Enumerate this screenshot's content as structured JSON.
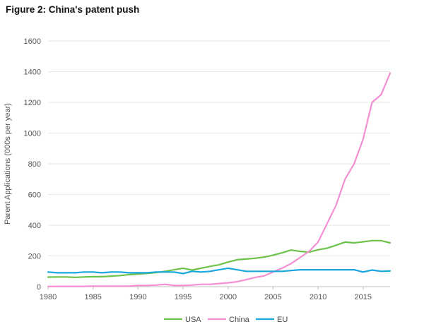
{
  "figure": {
    "title": "Figure 2: China's patent push"
  },
  "chart_data": {
    "type": "line",
    "title": "Figure 2: China's patent push",
    "xlabel": "",
    "ylabel": "Parent Applications (000s per year)",
    "xlim": [
      1980,
      2018
    ],
    "ylim": [
      0,
      1600
    ],
    "xticks": [
      1980,
      1985,
      1990,
      1995,
      2000,
      2005,
      2010,
      2015
    ],
    "yticks": [
      0,
      200,
      400,
      600,
      800,
      1000,
      1200,
      1400,
      1600
    ],
    "grid": "horizontal",
    "legend_position": "bottom",
    "x": [
      1980,
      1981,
      1982,
      1983,
      1984,
      1985,
      1986,
      1987,
      1988,
      1989,
      1990,
      1991,
      1992,
      1993,
      1994,
      1995,
      1996,
      1997,
      1998,
      1999,
      2000,
      2001,
      2002,
      2003,
      2004,
      2005,
      2006,
      2007,
      2008,
      2009,
      2010,
      2011,
      2012,
      2013,
      2014,
      2015,
      2016,
      2017,
      2018
    ],
    "series": [
      {
        "name": "USA",
        "color": "#6cc24a",
        "values": [
          62,
          63,
          63,
          60,
          63,
          65,
          65,
          68,
          72,
          78,
          82,
          86,
          92,
          100,
          110,
          120,
          108,
          120,
          132,
          142,
          160,
          175,
          180,
          185,
          192,
          205,
          220,
          238,
          230,
          225,
          240,
          250,
          270,
          290,
          285,
          292,
          300,
          300,
          285
        ]
      },
      {
        "name": "China",
        "color": "#f48fd3",
        "values": [
          1,
          2,
          2,
          2,
          2,
          3,
          3,
          3,
          3,
          3,
          8,
          8,
          10,
          15,
          8,
          8,
          10,
          15,
          15,
          20,
          25,
          32,
          45,
          60,
          70,
          95,
          120,
          150,
          190,
          230,
          290,
          410,
          530,
          700,
          800,
          960,
          1200,
          1250,
          1390
        ]
      },
      {
        "name": "EU",
        "color": "#1aa7dd",
        "values": [
          95,
          90,
          90,
          90,
          95,
          95,
          90,
          95,
          95,
          90,
          90,
          90,
          95,
          95,
          95,
          85,
          100,
          95,
          100,
          110,
          120,
          110,
          100,
          100,
          100,
          100,
          100,
          105,
          110,
          110,
          110,
          110,
          110,
          110,
          110,
          95,
          108,
          100,
          102
        ]
      }
    ]
  }
}
